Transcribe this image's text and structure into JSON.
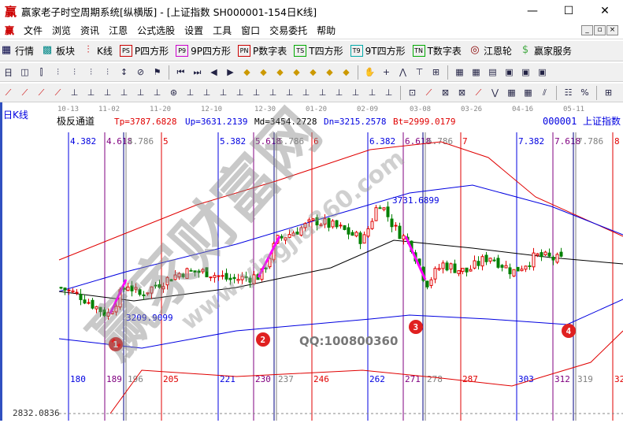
{
  "window": {
    "title": "赢家老子时空周期系统[纵横版] - [上证指数  SH000001-154日K线]",
    "logo": "赢",
    "buttons": [
      "—",
      "☐",
      "✕"
    ]
  },
  "menu": {
    "items": [
      "文件",
      "浏览",
      "资讯",
      "江恩",
      "公式选股",
      "设置",
      "工具",
      "窗口",
      "交易委托",
      "帮助"
    ],
    "mdi": [
      "_",
      "▫",
      "×"
    ]
  },
  "toolbar1": [
    {
      "icon": "grid-icon",
      "glyph": "▦",
      "label": "行情"
    },
    {
      "icon": "blocks-icon",
      "glyph": "▩",
      "label": "板块"
    },
    {
      "icon": "candles-icon",
      "glyph": "⫶",
      "label": "K线"
    },
    {
      "icon": "ps-icon",
      "glyph": "PS",
      "label": "P四方形"
    },
    {
      "icon": "p9-icon",
      "glyph": "P9",
      "label": "9P四方形"
    },
    {
      "icon": "pn-icon",
      "glyph": "PN",
      "label": "P数字表"
    },
    {
      "icon": "ts-icon",
      "glyph": "TS",
      "label": "T四方形"
    },
    {
      "icon": "t9-icon",
      "glyph": "T9",
      "label": "9T四方形"
    },
    {
      "icon": "tn-icon",
      "glyph": "TN",
      "label": "T数字表"
    },
    {
      "icon": "gann-wheel-icon",
      "glyph": "◎",
      "label": "江恩轮"
    },
    {
      "icon": "dollar-icon",
      "glyph": "$",
      "label": "赢家服务"
    }
  ],
  "chart": {
    "period_label": "日K线",
    "indicator_name": "极反通道",
    "params": [
      {
        "text": "Tp=3787.6828",
        "color": "#e00000"
      },
      {
        "text": "Up=3631.2139",
        "color": "#0000e0"
      },
      {
        "text": "Md=3454.2728",
        "color": "#000000"
      },
      {
        "text": "Dn=3215.2578",
        "color": "#0000e0"
      },
      {
        "text": "Bt=2999.0179",
        "color": "#e00000"
      }
    ],
    "code": "000001",
    "name": "上证指数",
    "dates": [
      "10-13",
      "11-02",
      "11-20",
      "12-10",
      "12-30",
      "01-20",
      "02-09",
      "03-08",
      "03-26",
      "04-16",
      "05-11"
    ],
    "fib_top": [
      "4.382",
      "4.618",
      "4.786",
      "5",
      "5.382",
      "5.618",
      "5.786",
      "6",
      "6.382",
      "6.618",
      "6.786",
      "7",
      "7.382",
      "7.618",
      "7.786",
      "8"
    ],
    "fib_bottom": [
      "180",
      "189",
      "196",
      "205",
      "221",
      "230",
      "237",
      "246",
      "262",
      "271",
      "278",
      "287",
      "303",
      "312",
      "319",
      "32"
    ],
    "high_label": "3731.6899",
    "low_label": "3209.9099",
    "bottom_label": "2832.0836",
    "markers": [
      "1",
      "2",
      "3",
      "4"
    ],
    "qq": "QQ:100800360",
    "watermark": "赢家财富网",
    "watermark_url": "www.yingjia360.com",
    "price_path": [
      3339,
      3304,
      3217,
      3357,
      3304,
      3357,
      3409,
      3409,
      3374,
      3392,
      3550,
      3602,
      3637,
      3602,
      3550,
      3725,
      3602,
      3532,
      3357,
      3444,
      3409,
      3480,
      3409,
      3480,
      3462
    ],
    "colors": {
      "up": "#e00000",
      "down": "#008000",
      "fib_blue": "#0000e0",
      "fib_purple": "#800080",
      "fib_gray": "#808080",
      "fib_red": "#e00000",
      "arrow": "#ff00ff",
      "marker": "#e02020"
    }
  }
}
